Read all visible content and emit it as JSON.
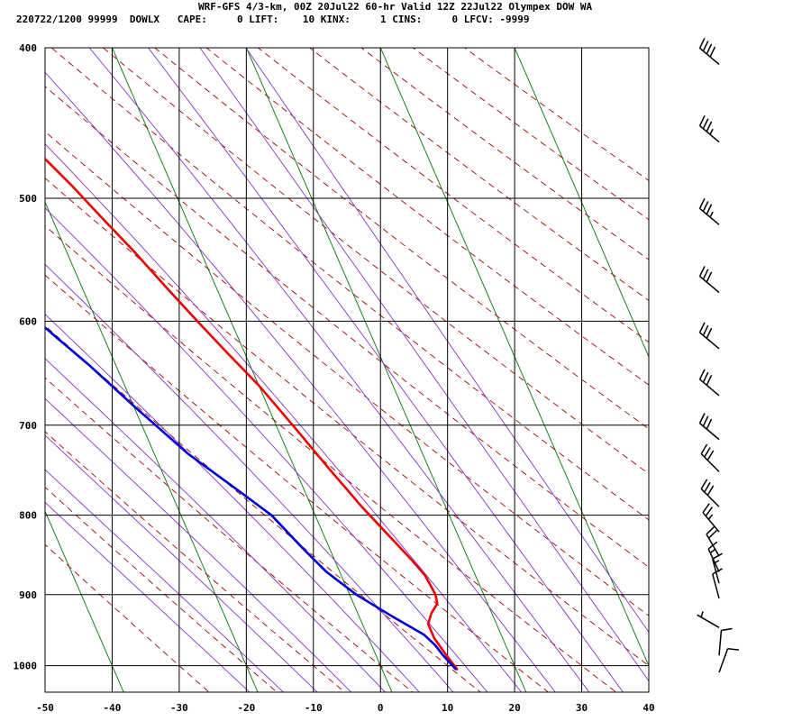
{
  "header": {
    "line1": "WRF-GFS 4/3-km, 00Z 20Jul22 60-hr Valid 12Z 22Jul22 Olympex DOW WA",
    "line2": "220722/1200 99999  DOWLX   CAPE:     0 LIFT:    10 KINX:     1 CINS:     0 LFCV: -9999"
  },
  "colors": {
    "temperature": "#ee0000",
    "dewpoint": "#0000dd",
    "dry_adiabat": "#aa0000",
    "moist_adiabat": "#8833cc",
    "isotherm_skewed": "#007700",
    "grid": "#000000",
    "wind_barb": "#000000"
  },
  "chart_data": {
    "type": "line",
    "xlim": [
      -50,
      40
    ],
    "ylim": [
      1040,
      400
    ],
    "y_scale": "log",
    "x_ticks": [
      -50,
      -40,
      -30,
      -20,
      -10,
      0,
      10,
      20,
      30,
      40
    ],
    "y_ticks": [
      400,
      500,
      600,
      700,
      800,
      900,
      1000
    ],
    "grid": true,
    "series": [
      {
        "key": "temperature",
        "points": [
          [
            -24,
            415
          ],
          [
            -21.5,
            435
          ],
          [
            -18,
            465
          ],
          [
            -15,
            490
          ],
          [
            -12.5,
            515
          ],
          [
            -10,
            540
          ],
          [
            -7.5,
            570
          ],
          [
            -5,
            600
          ],
          [
            -2.5,
            630
          ],
          [
            0,
            660
          ],
          [
            2.5,
            700
          ],
          [
            5,
            745
          ],
          [
            7.5,
            790
          ],
          [
            10,
            830
          ],
          [
            11.5,
            855
          ],
          [
            12.5,
            875
          ],
          [
            12.8,
            900
          ],
          [
            12.5,
            912
          ],
          [
            11,
            925
          ],
          [
            9.8,
            940
          ],
          [
            9.8,
            960
          ],
          [
            10.5,
            985
          ],
          [
            11.2,
            1005
          ]
        ]
      },
      {
        "key": "dewpoint",
        "points": [
          [
            -36.3,
            415
          ],
          [
            -36.5,
            430
          ],
          [
            -37,
            450
          ],
          [
            -37.5,
            475
          ],
          [
            -37,
            500
          ],
          [
            -36.5,
            530
          ],
          [
            -34,
            560
          ],
          [
            -30,
            590
          ],
          [
            -27,
            615
          ],
          [
            -24,
            640
          ],
          [
            -20,
            680
          ],
          [
            -15,
            730
          ],
          [
            -10,
            770
          ],
          [
            -6.5,
            800
          ],
          [
            -4,
            840
          ],
          [
            -2,
            870
          ],
          [
            1,
            900
          ],
          [
            5,
            930
          ],
          [
            8.5,
            955
          ],
          [
            9.5,
            970
          ],
          [
            10,
            985
          ],
          [
            11,
            1005
          ]
        ]
      }
    ],
    "wind_barbs": [
      {
        "p": 410,
        "dir": 310,
        "spd": 40
      },
      {
        "p": 460,
        "dir": 310,
        "spd": 35
      },
      {
        "p": 520,
        "dir": 310,
        "spd": 35
      },
      {
        "p": 575,
        "dir": 310,
        "spd": 30
      },
      {
        "p": 625,
        "dir": 310,
        "spd": 30
      },
      {
        "p": 670,
        "dir": 310,
        "spd": 30
      },
      {
        "p": 715,
        "dir": 310,
        "spd": 30
      },
      {
        "p": 750,
        "dir": 315,
        "spd": 30
      },
      {
        "p": 790,
        "dir": 315,
        "spd": 30
      },
      {
        "p": 820,
        "dir": 320,
        "spd": 25
      },
      {
        "p": 850,
        "dir": 330,
        "spd": 20
      },
      {
        "p": 870,
        "dir": 335,
        "spd": 15
      },
      {
        "p": 885,
        "dir": 345,
        "spd": 15
      },
      {
        "p": 905,
        "dir": 345,
        "spd": 10
      },
      {
        "p": 945,
        "dir": 300,
        "spd": 5
      },
      {
        "p": 985,
        "dir": 5,
        "spd": 10
      },
      {
        "p": 1010,
        "dir": 20,
        "spd": 10
      }
    ]
  }
}
